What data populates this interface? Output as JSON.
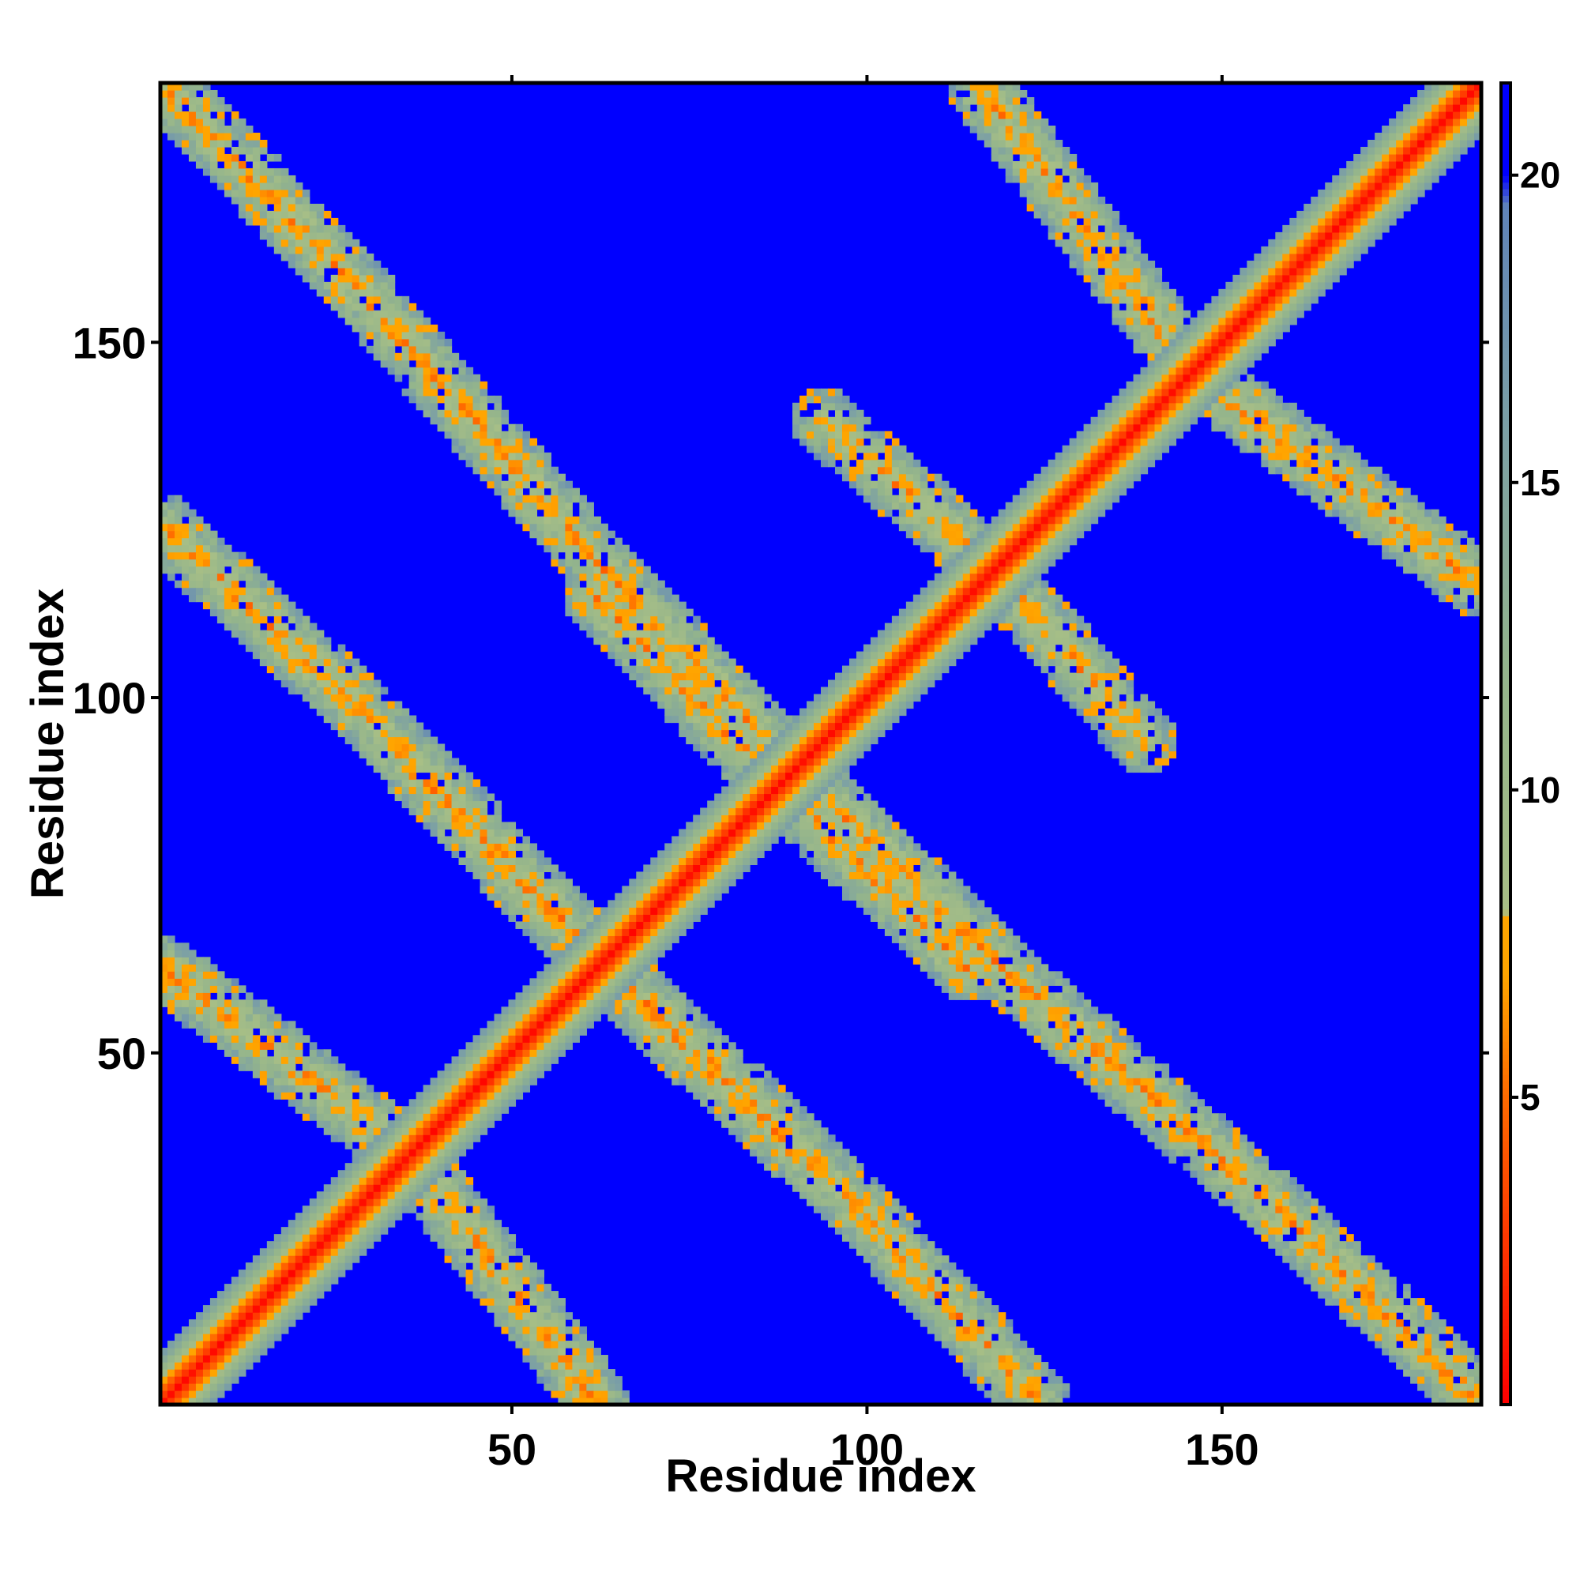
{
  "chart_data": {
    "type": "heatmap",
    "title": "",
    "xlabel": "Residue index",
    "ylabel": "Residue index",
    "n_residues": 186,
    "xlim": [
      1,
      186
    ],
    "ylim": [
      1,
      186
    ],
    "x_ticks": [
      50,
      100,
      150
    ],
    "y_ticks": [
      50,
      100,
      150
    ],
    "colorbar": {
      "range": [
        0,
        21.5
      ],
      "ticks": [
        5,
        10,
        15,
        20
      ],
      "stops": [
        {
          "value": 0,
          "color": "#ff0000"
        },
        {
          "value": 2.5,
          "color": "#ff3300"
        },
        {
          "value": 5,
          "color": "#ff6a00"
        },
        {
          "value": 7,
          "color": "#ffa500"
        },
        {
          "value": 8,
          "color": "#ffa500"
        },
        {
          "value": 8.01,
          "color": "#a8bf86"
        },
        {
          "value": 12,
          "color": "#93b48c"
        },
        {
          "value": 16,
          "color": "#7b9fa6"
        },
        {
          "value": 19.5,
          "color": "#5f83b8"
        },
        {
          "value": 20,
          "color": "#0000ff"
        },
        {
          "value": 21.5,
          "color": "#0000ff"
        }
      ]
    },
    "contact_bands": {
      "description_units": "residue index",
      "main_diagonal": {
        "from": [
          1,
          1
        ],
        "to": [
          186,
          186
        ]
      },
      "anti_diagonal_segments": [
        {
          "from": [
            1,
            186
          ],
          "to": [
            28,
            158
          ]
        },
        {
          "from": [
            28,
            158
          ],
          "to": [
            62,
            119
          ]
        },
        {
          "from": [
            62,
            119
          ],
          "to": [
            87,
            93
          ]
        },
        {
          "from": [
            87,
            93
          ],
          "to": [
            118,
            62
          ]
        },
        {
          "from": [
            118,
            62
          ],
          "to": [
            158,
            28
          ]
        },
        {
          "from": [
            158,
            28
          ],
          "to": [
            186,
            1
          ]
        },
        {
          "from": [
            1,
            62
          ],
          "to": [
            35,
            36
          ]
        },
        {
          "from": [
            35,
            36
          ],
          "to": [
            62,
            10
          ]
        },
        {
          "from": [
            62,
            10
          ],
          "to": [
            70,
            2
          ]
        },
        {
          "from": [
            36,
            90
          ],
          "to": [
            62,
            63
          ]
        },
        {
          "from": [
            62,
            63
          ],
          "to": [
            87,
            37
          ]
        },
        {
          "from": [
            87,
            37
          ],
          "to": [
            118,
            2
          ]
        },
        {
          "from": [
            62,
            114
          ],
          "to": [
            87,
            88
          ]
        },
        {
          "from": [
            87,
            88
          ],
          "to": [
            113,
            63
          ]
        },
        {
          "from": [
            94,
            139
          ],
          "to": [
            118,
            118
          ]
        },
        {
          "from": [
            118,
            118
          ],
          "to": [
            139,
            95
          ]
        },
        {
          "from": [
            1,
            124
          ],
          "to": [
            30,
            97
          ]
        },
        {
          "from": [
            30,
            97
          ],
          "to": [
            60,
            66
          ]
        },
        {
          "from": [
            116,
            186
          ],
          "to": [
            145,
            147
          ]
        },
        {
          "from": [
            145,
            147
          ],
          "to": [
            186,
            119
          ]
        },
        {
          "from": [
            125,
            63
          ],
          "to": [
            155,
            35
          ]
        },
        {
          "from": [
            155,
            35
          ],
          "to": [
            186,
            5
          ]
        }
      ]
    }
  }
}
